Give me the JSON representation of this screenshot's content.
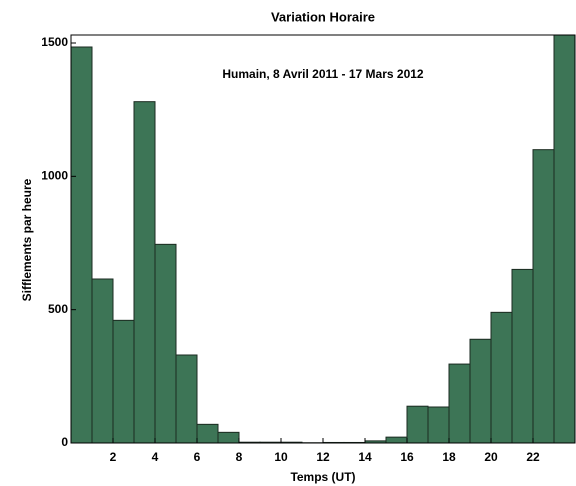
{
  "chart_data": {
    "type": "histogram",
    "title": "Variation Horaire",
    "annotation": "Humain, 8 Avril 2011 - 17 Mars 2012",
    "x_label": "Temps (UT)",
    "y_label": "Sifflements par heure",
    "bins": [
      0,
      1,
      2,
      3,
      4,
      5,
      6,
      7,
      8,
      9,
      10,
      11,
      12,
      13,
      14,
      15,
      16,
      17,
      18,
      19,
      20,
      21,
      22,
      23,
      24
    ],
    "values": [
      1485,
      615,
      460,
      1280,
      745,
      330,
      70,
      40,
      3,
      3,
      3,
      1,
      2,
      2,
      8,
      22,
      138,
      135,
      296,
      389,
      490,
      651,
      1100,
      1530
    ],
    "color": "#3d7556",
    "xlim": [
      0,
      24
    ],
    "ylim": [
      0,
      1530
    ],
    "xticks": [
      2,
      4,
      6,
      8,
      10,
      12,
      14,
      16,
      18,
      20,
      22
    ],
    "yticks": [
      0,
      500,
      1000,
      1500
    ]
  }
}
